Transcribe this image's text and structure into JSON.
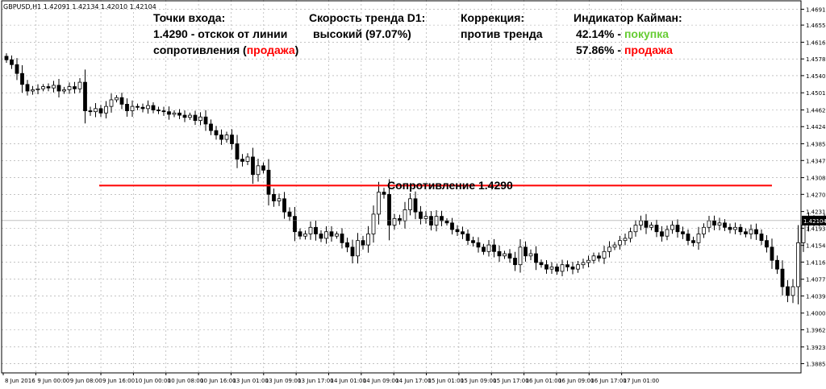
{
  "header": {
    "symbol_line": "GBPUSD,H1  1.42091 1.42134 1.42010 1.42104"
  },
  "annotations": {
    "entry": {
      "title": "Точки входа:",
      "line1": "1.4290 - отскок от линии",
      "line2_prefix": "сопротивления (",
      "line2_action": "продажа",
      "line2_suffix": ")"
    },
    "trend": {
      "title": "Скорость тренда D1:",
      "value": "высокий (97.07%)"
    },
    "correction": {
      "title": "Коррекция:",
      "value": "против тренда"
    },
    "kayman": {
      "title": "Индикатор Кайман:",
      "buy_pct": "42.14% - ",
      "buy_label": "покупка",
      "sell_pct": "57.86% - ",
      "sell_label": "продажа"
    }
  },
  "colors": {
    "candle": "#000000",
    "grid": "#a0a0a0",
    "resistance": "#ff0000",
    "buy": "#66cc33",
    "sell": "#ff0000",
    "background": "#ffffff"
  },
  "chart_data": {
    "type": "candlestick",
    "symbol": "GBPUSD",
    "timeframe": "H1",
    "ylim": [
      1.3864,
      1.4712
    ],
    "current_price": 1.42104,
    "current_price_label": "1.42104",
    "resistance": {
      "price": 1.429,
      "label": "Сопротивление 1.4290"
    },
    "y_ticks": [
      "1.46910",
      "1.46550",
      "1.46160",
      "1.45780",
      "1.45400",
      "1.45010",
      "1.44620",
      "1.44240",
      "1.43850",
      "1.43470",
      "1.43080",
      "1.42700",
      "1.42310",
      "1.41930",
      "1.41540",
      "1.41160",
      "1.40770",
      "1.40390",
      "1.40000",
      "1.39620",
      "1.39230",
      "1.38850"
    ],
    "x_ticks": [
      "8 Jun 2016",
      "9 Jun 00:00",
      "9 Jun 08:00",
      "9 Jun 16:00",
      "10 Jun 00:00",
      "10 Jun 08:00",
      "10 Jun 16:00",
      "13 Jun 01:00",
      "13 Jun 09:00",
      "13 Jun 17:00",
      "14 Jun 01:00",
      "14 Jun 09:00",
      "14 Jun 17:00",
      "15 Jun 01:00",
      "15 Jun 09:00",
      "15 Jun 17:00",
      "16 Jun 01:00",
      "16 Jun 09:00",
      "16 Jun 17:00",
      "17 Jun 01:00"
    ],
    "forecast": [
      [
        1.421,
        1.429
      ],
      [
        1.429,
        1.4258
      ]
    ],
    "closes": [
      1.4576,
      1.4565,
      1.4545,
      1.452,
      1.4505,
      1.4508,
      1.451,
      1.4515,
      1.4512,
      1.4518,
      1.4505,
      1.4508,
      1.4515,
      1.451,
      1.4525,
      1.446,
      1.4458,
      1.4465,
      1.4455,
      1.447,
      1.4485,
      1.449,
      1.4475,
      1.446,
      1.447,
      1.4468,
      1.4465,
      1.4472,
      1.4462,
      1.446,
      1.4458,
      1.4452,
      1.4455,
      1.445,
      1.4445,
      1.445,
      1.4438,
      1.4446,
      1.443,
      1.4415,
      1.4405,
      1.4395,
      1.4405,
      1.4385,
      1.435,
      1.4345,
      1.4355,
      1.4315,
      1.4335,
      1.4325,
      1.427,
      1.4255,
      1.426,
      1.423,
      1.422,
      1.4185,
      1.4175,
      1.418,
      1.4195,
      1.418,
      1.417,
      1.4185,
      1.4175,
      1.418,
      1.416,
      1.415,
      1.413,
      1.4165,
      1.4155,
      1.418,
      1.4225,
      1.4275,
      1.427,
      1.42,
      1.4215,
      1.421,
      1.4235,
      1.426,
      1.423,
      1.4215,
      1.422,
      1.42,
      1.422,
      1.421,
      1.4205,
      1.419,
      1.4185,
      1.418,
      1.4165,
      1.416,
      1.415,
      1.414,
      1.4155,
      1.414,
      1.413,
      1.4135,
      1.4125,
      1.411,
      1.415,
      1.413,
      1.4135,
      1.4115,
      1.411,
      1.41,
      1.4105,
      1.4095,
      1.411,
      1.4105,
      1.41,
      1.411,
      1.4115,
      1.412,
      1.413,
      1.4125,
      1.414,
      1.415,
      1.4155,
      1.4165,
      1.417,
      1.4185,
      1.42,
      1.421,
      1.4195,
      1.42,
      1.4185,
      1.4175,
      1.419,
      1.42,
      1.4185,
      1.418,
      1.4165,
      1.416,
      1.418,
      1.4195,
      1.421,
      1.42,
      1.4205,
      1.4195,
      1.419,
      1.4195,
      1.4185,
      1.418,
      1.419,
      1.418,
      1.4165,
      1.415,
      1.412,
      1.41,
      1.406,
      1.404,
      1.406,
      1.416,
      1.42,
      1.4215,
      1.4205,
      1.421,
      1.4215,
      1.421
    ]
  }
}
